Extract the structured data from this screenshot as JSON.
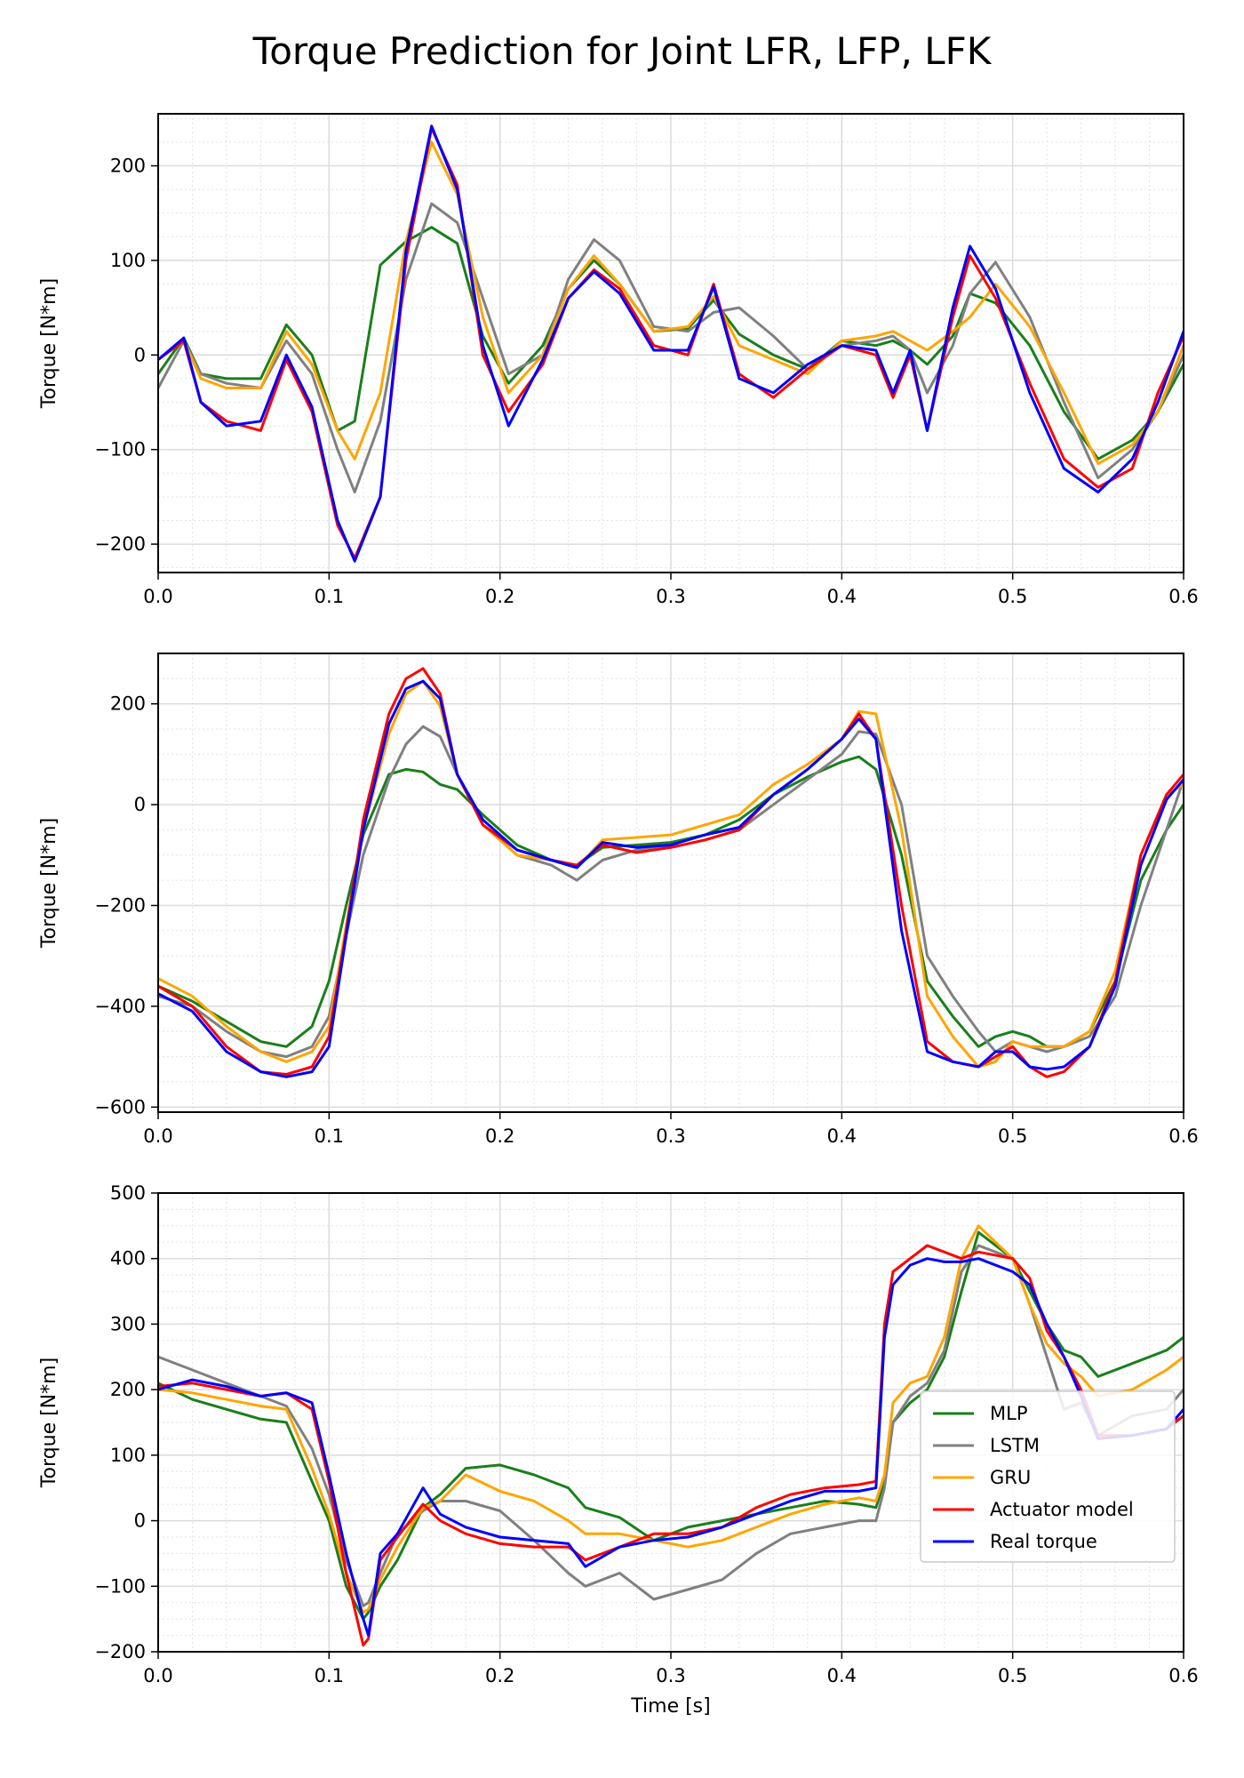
{
  "figure": {
    "title": "Torque Prediction for Joint LFR, LFP, LFK"
  },
  "legend": {
    "position": "lower-right of third panel",
    "entries": [
      {
        "label": "MLP",
        "color": "#1a7f1a"
      },
      {
        "label": "LSTM",
        "color": "#808080"
      },
      {
        "label": "GRU",
        "color": "#ffa500"
      },
      {
        "label": "Actuator model",
        "color": "#ff0000"
      },
      {
        "label": "Real torque",
        "color": "#0000ff"
      }
    ]
  },
  "chart_data": [
    {
      "type": "line",
      "title": "Torque Prediction for Joint LFR, LFP, LFK",
      "xlabel": "",
      "ylabel": "Torque [N*m]",
      "xlim": [
        0.0,
        0.6
      ],
      "ylim": [
        -230,
        255
      ],
      "xticks": [
        0.0,
        0.1,
        0.2,
        0.3,
        0.4,
        0.5,
        0.6
      ],
      "xtick_labels": [
        "0.0",
        "0.1",
        "0.2",
        "0.3",
        "0.4",
        "0.5",
        "0.6"
      ],
      "yticks": [
        -200,
        -100,
        0,
        100,
        200
      ],
      "ytick_labels": [
        "−200",
        "−100",
        "0",
        "100",
        "200"
      ],
      "grid": true,
      "x": [
        0.0,
        0.015,
        0.025,
        0.04,
        0.06,
        0.075,
        0.09,
        0.105,
        0.115,
        0.13,
        0.145,
        0.16,
        0.175,
        0.19,
        0.205,
        0.225,
        0.24,
        0.255,
        0.27,
        0.29,
        0.31,
        0.325,
        0.34,
        0.36,
        0.38,
        0.4,
        0.42,
        0.43,
        0.44,
        0.45,
        0.465,
        0.475,
        0.49,
        0.51,
        0.53,
        0.55,
        0.57,
        0.585,
        0.6
      ],
      "series": [
        {
          "name": "MLP",
          "values": [
            -20,
            18,
            -20,
            -25,
            -25,
            32,
            0,
            -80,
            -70,
            95,
            120,
            135,
            118,
            20,
            -30,
            10,
            70,
            100,
            75,
            25,
            28,
            58,
            22,
            0,
            -15,
            15,
            10,
            15,
            5,
            -10,
            20,
            65,
            55,
            10,
            -60,
            -110,
            -90,
            -60,
            -10
          ]
        },
        {
          "name": "LSTM",
          "values": [
            -35,
            15,
            -20,
            -30,
            -35,
            15,
            -20,
            -100,
            -145,
            -70,
            80,
            160,
            140,
            60,
            -20,
            0,
            80,
            122,
            100,
            30,
            25,
            45,
            50,
            20,
            -15,
            10,
            15,
            20,
            5,
            -40,
            10,
            65,
            98,
            40,
            -50,
            -130,
            -100,
            -60,
            0
          ]
        },
        {
          "name": "GRU",
          "values": [
            -5,
            15,
            -25,
            -35,
            -35,
            25,
            -10,
            -80,
            -110,
            -40,
            120,
            225,
            170,
            40,
            -40,
            0,
            70,
            105,
            75,
            25,
            30,
            62,
            10,
            -5,
            -20,
            15,
            20,
            25,
            15,
            5,
            25,
            40,
            75,
            30,
            -40,
            -115,
            -95,
            -60,
            10
          ]
        },
        {
          "name": "Actuator model",
          "values": [
            -5,
            15,
            -50,
            -70,
            -80,
            -5,
            -60,
            -180,
            -215,
            -150,
            100,
            240,
            180,
            0,
            -60,
            -10,
            60,
            90,
            70,
            10,
            0,
            75,
            -20,
            -45,
            -15,
            10,
            0,
            -45,
            0,
            -80,
            40,
            105,
            60,
            -30,
            -110,
            -140,
            -120,
            -40,
            20
          ]
        },
        {
          "name": "Real torque",
          "values": [
            -5,
            18,
            -50,
            -75,
            -70,
            0,
            -55,
            -175,
            -218,
            -150,
            110,
            242,
            175,
            10,
            -75,
            -5,
            60,
            88,
            65,
            5,
            5,
            72,
            -25,
            -40,
            -10,
            10,
            5,
            -40,
            5,
            -80,
            50,
            115,
            70,
            -40,
            -120,
            -145,
            -110,
            -50,
            25
          ]
        }
      ]
    },
    {
      "type": "line",
      "title": "",
      "xlabel": "",
      "ylabel": "Torque [N*m]",
      "xlim": [
        0.0,
        0.6
      ],
      "ylim": [
        -610,
        300
      ],
      "xticks": [
        0.0,
        0.1,
        0.2,
        0.3,
        0.4,
        0.5,
        0.6
      ],
      "xtick_labels": [
        "0.0",
        "0.1",
        "0.2",
        "0.3",
        "0.4",
        "0.5",
        "0.6"
      ],
      "yticks": [
        -600,
        -400,
        -200,
        0,
        200
      ],
      "ytick_labels": [
        "−600",
        "−400",
        "−200",
        "0",
        "200"
      ],
      "grid": true,
      "x": [
        0.0,
        0.02,
        0.04,
        0.06,
        0.075,
        0.09,
        0.1,
        0.11,
        0.12,
        0.135,
        0.145,
        0.155,
        0.165,
        0.175,
        0.19,
        0.21,
        0.23,
        0.245,
        0.26,
        0.28,
        0.3,
        0.32,
        0.34,
        0.36,
        0.38,
        0.4,
        0.41,
        0.42,
        0.435,
        0.45,
        0.465,
        0.48,
        0.49,
        0.5,
        0.51,
        0.52,
        0.53,
        0.545,
        0.56,
        0.575,
        0.59,
        0.6
      ],
      "series": [
        {
          "name": "MLP",
          "values": [
            -360,
            -390,
            -430,
            -470,
            -480,
            -440,
            -350,
            -200,
            -60,
            60,
            70,
            65,
            40,
            30,
            -20,
            -80,
            -110,
            -120,
            -85,
            -80,
            -75,
            -60,
            -30,
            20,
            55,
            85,
            95,
            70,
            -100,
            -350,
            -420,
            -480,
            -460,
            -450,
            -460,
            -480,
            -480,
            -450,
            -350,
            -150,
            -50,
            0
          ]
        },
        {
          "name": "LSTM",
          "values": [
            -380,
            -400,
            -450,
            -490,
            -500,
            -480,
            -420,
            -260,
            -100,
            50,
            120,
            155,
            135,
            60,
            -40,
            -100,
            -120,
            -150,
            -110,
            -90,
            -85,
            -70,
            -50,
            0,
            50,
            100,
            145,
            140,
            0,
            -300,
            -380,
            -450,
            -490,
            -470,
            -480,
            -490,
            -480,
            -460,
            -380,
            -200,
            -50,
            50
          ]
        },
        {
          "name": "GRU",
          "values": [
            -345,
            -380,
            -440,
            -490,
            -510,
            -490,
            -440,
            -240,
            -50,
            140,
            220,
            245,
            195,
            60,
            -40,
            -100,
            -110,
            -125,
            -70,
            -65,
            -60,
            -40,
            -20,
            40,
            80,
            130,
            185,
            180,
            -50,
            -380,
            -460,
            -520,
            -510,
            -470,
            -480,
            -480,
            -480,
            -450,
            -330,
            -100,
            20,
            40
          ]
        },
        {
          "name": "Actuator model",
          "values": [
            -360,
            -400,
            -480,
            -530,
            -535,
            -520,
            -460,
            -250,
            -30,
            180,
            250,
            270,
            220,
            60,
            -40,
            -90,
            -110,
            -120,
            -80,
            -95,
            -85,
            -70,
            -50,
            20,
            70,
            130,
            180,
            130,
            -200,
            -470,
            -510,
            -520,
            -500,
            -480,
            -520,
            -540,
            -530,
            -480,
            -350,
            -100,
            20,
            60
          ]
        },
        {
          "name": "Real torque",
          "values": [
            -375,
            -410,
            -490,
            -530,
            -540,
            -530,
            -480,
            -260,
            -50,
            160,
            230,
            245,
            210,
            60,
            -30,
            -90,
            -110,
            -125,
            -75,
            -85,
            -80,
            -60,
            -45,
            20,
            70,
            130,
            170,
            130,
            -250,
            -490,
            -510,
            -520,
            -490,
            -490,
            -520,
            -525,
            -520,
            -480,
            -360,
            -120,
            10,
            50
          ]
        }
      ]
    },
    {
      "type": "line",
      "title": "",
      "xlabel": "Time [s]",
      "ylabel": "Torque [N*m]",
      "xlim": [
        0.0,
        0.6
      ],
      "ylim": [
        -200,
        500
      ],
      "xticks": [
        0.0,
        0.1,
        0.2,
        0.3,
        0.4,
        0.5,
        0.6
      ],
      "xtick_labels": [
        "0.0",
        "0.1",
        "0.2",
        "0.3",
        "0.4",
        "0.5",
        "0.6"
      ],
      "yticks": [
        -200,
        -100,
        0,
        100,
        200,
        300,
        400,
        500
      ],
      "ytick_labels": [
        "−200",
        "−100",
        "0",
        "100",
        "200",
        "300",
        "400",
        "500"
      ],
      "grid": true,
      "x": [
        0.0,
        0.02,
        0.04,
        0.06,
        0.075,
        0.09,
        0.1,
        0.11,
        0.12,
        0.123,
        0.13,
        0.14,
        0.155,
        0.165,
        0.18,
        0.2,
        0.22,
        0.24,
        0.25,
        0.27,
        0.29,
        0.31,
        0.33,
        0.35,
        0.37,
        0.39,
        0.41,
        0.42,
        0.425,
        0.43,
        0.44,
        0.45,
        0.46,
        0.47,
        0.48,
        0.5,
        0.51,
        0.52,
        0.53,
        0.54,
        0.55,
        0.57,
        0.59,
        0.6
      ],
      "series": [
        {
          "name": "MLP",
          "values": [
            210,
            185,
            170,
            155,
            150,
            60,
            0,
            -100,
            -150,
            -140,
            -100,
            -60,
            20,
            40,
            80,
            85,
            70,
            50,
            20,
            5,
            -30,
            -10,
            0,
            10,
            20,
            30,
            25,
            20,
            60,
            150,
            180,
            200,
            250,
            350,
            440,
            400,
            350,
            300,
            260,
            250,
            220,
            240,
            260,
            280
          ]
        },
        {
          "name": "LSTM",
          "values": [
            250,
            230,
            210,
            190,
            175,
            110,
            40,
            -60,
            -130,
            -125,
            -80,
            -20,
            15,
            30,
            30,
            15,
            -30,
            -80,
            -100,
            -80,
            -120,
            -105,
            -90,
            -50,
            -20,
            -10,
            0,
            0,
            50,
            150,
            190,
            210,
            260,
            380,
            420,
            400,
            330,
            250,
            170,
            180,
            130,
            160,
            170,
            200
          ]
        },
        {
          "name": "GRU",
          "values": [
            200,
            195,
            185,
            175,
            170,
            80,
            10,
            -80,
            -140,
            -135,
            -90,
            -40,
            20,
            30,
            70,
            45,
            30,
            0,
            -20,
            -20,
            -30,
            -40,
            -30,
            -10,
            10,
            25,
            35,
            30,
            70,
            180,
            210,
            220,
            280,
            400,
            450,
            400,
            330,
            270,
            240,
            220,
            190,
            200,
            230,
            250
          ]
        },
        {
          "name": "Actuator model",
          "values": [
            205,
            210,
            200,
            190,
            195,
            170,
            60,
            -80,
            -190,
            -180,
            -60,
            -25,
            25,
            0,
            -20,
            -35,
            -40,
            -40,
            -60,
            -40,
            -20,
            -20,
            -10,
            20,
            40,
            50,
            55,
            60,
            300,
            380,
            400,
            420,
            410,
            400,
            410,
            400,
            370,
            290,
            250,
            200,
            130,
            130,
            140,
            160
          ]
        },
        {
          "name": "Real torque",
          "values": [
            200,
            215,
            205,
            190,
            195,
            180,
            70,
            -50,
            -150,
            -175,
            -50,
            -20,
            50,
            10,
            -10,
            -25,
            -30,
            -35,
            -70,
            -40,
            -30,
            -25,
            -10,
            10,
            30,
            45,
            45,
            50,
            280,
            360,
            390,
            400,
            395,
            395,
            400,
            380,
            360,
            300,
            250,
            190,
            125,
            130,
            140,
            170
          ]
        }
      ]
    }
  ]
}
